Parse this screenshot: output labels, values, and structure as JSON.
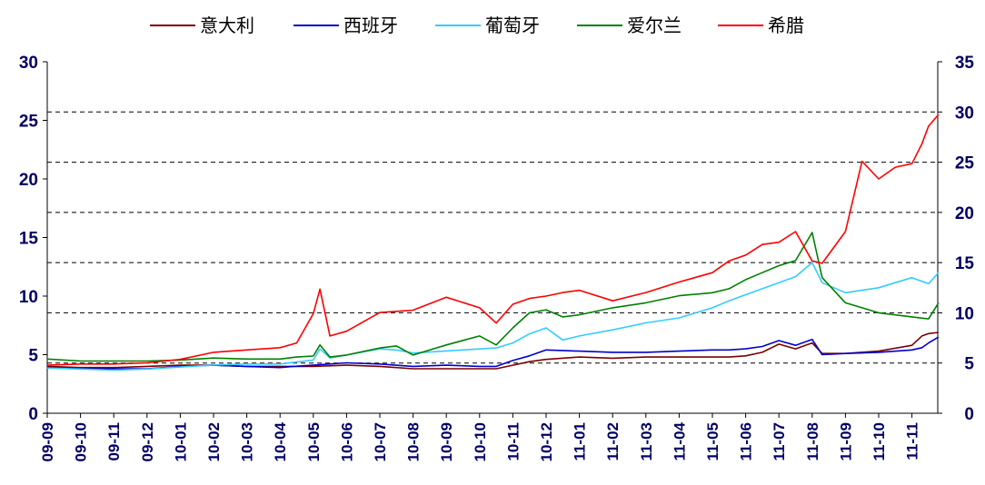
{
  "chart_data": {
    "type": "line",
    "title": "",
    "legend_position": "top",
    "grid": "horizontal dashed",
    "categories": [
      "09-09",
      "09-10",
      "09-11",
      "09-12",
      "10-01",
      "10-02",
      "10-03",
      "10-04",
      "10-05",
      "10-06",
      "10-07",
      "10-08",
      "10-09",
      "10-10",
      "10-11",
      "10-12",
      "11-01",
      "11-02",
      "11-03",
      "11-04",
      "11-05",
      "11-06",
      "11-07",
      "11-08",
      "11-09",
      "11-10",
      "11-11"
    ],
    "y_left": {
      "min": 0,
      "max": 30,
      "ticks": [
        "0",
        "5",
        "10",
        "15",
        "20",
        "25",
        "30"
      ]
    },
    "y_right": {
      "min": 0,
      "max": 35,
      "ticks": [
        "0",
        "5",
        "10",
        "15",
        "20",
        "25",
        "30",
        "35"
      ]
    },
    "series": [
      {
        "name": "意大利",
        "color": "#7a0000",
        "axis": "left",
        "x": [
          0,
          1,
          2,
          3,
          4,
          5,
          6,
          7,
          7.4,
          8,
          9,
          10,
          11,
          12,
          13,
          13.5,
          14,
          14.5,
          15,
          16,
          17,
          18,
          19,
          20,
          20.5,
          21,
          21.5,
          22,
          22.5,
          23,
          23.3,
          24,
          25,
          26,
          26.3,
          26.5,
          26.8
        ],
        "values": [
          4.0,
          3.9,
          3.9,
          4.0,
          4.1,
          4.1,
          4.0,
          4.0,
          4.0,
          4.0,
          4.1,
          4.0,
          3.8,
          3.8,
          3.8,
          3.8,
          4.1,
          4.4,
          4.6,
          4.8,
          4.7,
          4.8,
          4.8,
          4.8,
          4.8,
          4.9,
          5.2,
          5.9,
          5.5,
          6.0,
          5.1,
          5.1,
          5.3,
          5.8,
          6.6,
          6.8,
          6.9
        ]
      },
      {
        "name": "西班牙",
        "color": "#0000cc",
        "axis": "left",
        "x": [
          0,
          1,
          2,
          3,
          4,
          5,
          6,
          7,
          7.4,
          8,
          9,
          10,
          11,
          12,
          13,
          13.5,
          14,
          14.5,
          15,
          16,
          17,
          18,
          19,
          20,
          20.5,
          21,
          21.5,
          22,
          22.5,
          23,
          23.3,
          24,
          25,
          26,
          26.3,
          26.5,
          26.8
        ],
        "values": [
          3.9,
          3.8,
          3.8,
          3.8,
          4.0,
          4.1,
          4.0,
          3.9,
          4.0,
          4.1,
          4.3,
          4.2,
          4.0,
          4.1,
          4.0,
          4.0,
          4.5,
          4.9,
          5.4,
          5.3,
          5.2,
          5.2,
          5.3,
          5.4,
          5.4,
          5.5,
          5.7,
          6.2,
          5.8,
          6.3,
          5.0,
          5.1,
          5.2,
          5.4,
          5.6,
          6.0,
          6.5
        ]
      },
      {
        "name": "葡萄牙",
        "color": "#33ccff",
        "axis": "right",
        "x": [
          0,
          1,
          2,
          3,
          4,
          5,
          6,
          7,
          7.5,
          8,
          8.2,
          8.5,
          9,
          10,
          10.5,
          11,
          12,
          13,
          13.5,
          14,
          14.5,
          15,
          15.5,
          16,
          17,
          18,
          19,
          20,
          20.5,
          21,
          21.5,
          22,
          22.5,
          23,
          23.3,
          24,
          25,
          26,
          26.5,
          26.8
        ],
        "values": [
          4.5,
          4.4,
          4.3,
          4.4,
          4.6,
          4.8,
          4.9,
          4.9,
          5.1,
          5.3,
          6.4,
          5.5,
          5.8,
          6.4,
          6.3,
          6.0,
          6.2,
          6.4,
          6.5,
          7.0,
          7.9,
          8.5,
          7.3,
          7.7,
          8.3,
          9.0,
          9.5,
          10.5,
          11.2,
          11.8,
          12.4,
          13.0,
          13.6,
          15.0,
          13.0,
          12.0,
          12.5,
          13.5,
          12.9,
          14.0
        ]
      },
      {
        "name": "爱尔兰",
        "color": "#008000",
        "axis": "right",
        "x": [
          0,
          1,
          2,
          3,
          4,
          5,
          6,
          7,
          7.5,
          8,
          8.2,
          8.5,
          9,
          10,
          10.5,
          11,
          12,
          13,
          13.5,
          14,
          14.5,
          15,
          15.5,
          16,
          17,
          18,
          19,
          20,
          20.5,
          21,
          21.5,
          22,
          22.5,
          23,
          23.3,
          24,
          25,
          26,
          26.5,
          26.8
        ],
        "values": [
          5.4,
          5.2,
          5.2,
          5.2,
          5.3,
          5.5,
          5.4,
          5.4,
          5.6,
          5.7,
          6.8,
          5.6,
          5.8,
          6.5,
          6.7,
          5.8,
          6.8,
          7.7,
          6.8,
          8.5,
          10.0,
          10.3,
          9.6,
          9.8,
          10.5,
          11.0,
          11.7,
          12.0,
          12.4,
          13.3,
          14.0,
          14.7,
          15.2,
          18.0,
          13.5,
          11.0,
          10.0,
          9.6,
          9.4,
          11.0
        ]
      },
      {
        "name": "希腊",
        "color": "#ff0000",
        "axis": "left",
        "x": [
          0,
          1,
          2,
          3,
          4,
          5,
          6,
          7,
          7.5,
          8,
          8.2,
          8.5,
          9,
          10,
          10.5,
          11,
          12,
          13,
          13.5,
          14,
          14.5,
          15,
          15.5,
          16,
          17,
          18,
          19,
          20,
          20.5,
          21,
          21.5,
          22,
          22.5,
          23,
          23.3,
          24,
          24.5,
          25,
          25.5,
          26,
          26.3,
          26.5,
          26.8
        ],
        "values": [
          4.1,
          4.2,
          4.2,
          4.3,
          4.6,
          5.2,
          5.4,
          5.6,
          6.0,
          8.5,
          10.6,
          6.6,
          7.0,
          8.6,
          8.7,
          8.8,
          9.9,
          9.0,
          7.7,
          9.3,
          9.8,
          10.0,
          10.3,
          10.5,
          9.6,
          10.3,
          11.2,
          12.0,
          13.0,
          13.5,
          14.4,
          14.6,
          15.5,
          13.0,
          12.8,
          15.5,
          21.5,
          20.0,
          21.0,
          21.3,
          23.0,
          24.5,
          25.5
        ]
      }
    ]
  }
}
